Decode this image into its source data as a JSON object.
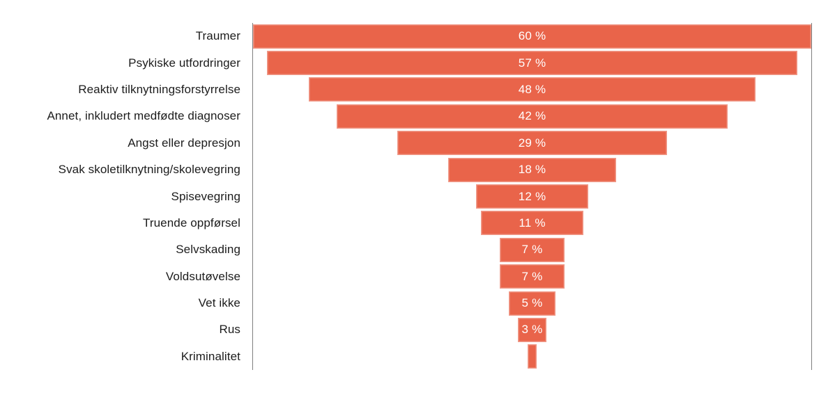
{
  "chart_data": {
    "type": "bar",
    "subtype": "centered-funnel",
    "orientation": "horizontal",
    "title": "",
    "xlabel": "",
    "ylabel": "",
    "grid": false,
    "legend": false,
    "xlim": [
      0,
      60
    ],
    "categories": [
      "Traumer",
      "Psykiske utfordringer",
      "Reaktiv tilknytningsforstyrrelse",
      "Annet, inkludert medfødte diagnoser",
      "Angst eller depresjon",
      "Svak skoletilknytning/skolevegring",
      "Spisevegring",
      "Truende oppførsel",
      "Selvskading",
      "Voldsutøvelse",
      "Vet ikke",
      "Rus",
      "Kriminalitet"
    ],
    "values": [
      60,
      57,
      48,
      42,
      29,
      18,
      12,
      11,
      7,
      7,
      5,
      3,
      1
    ],
    "bar_labels": [
      "60 %",
      "57 %",
      "48 %",
      "42 %",
      "29 %",
      "18 %",
      "12 %",
      "11 %",
      "7 %",
      "7 %",
      "5 %",
      "3 %",
      ""
    ],
    "bar_color": "#E9644A",
    "bar_label_color": "#FFFFFF",
    "category_label_color": "#1C1C1C",
    "axis_line_color": "#7F7F7F"
  }
}
